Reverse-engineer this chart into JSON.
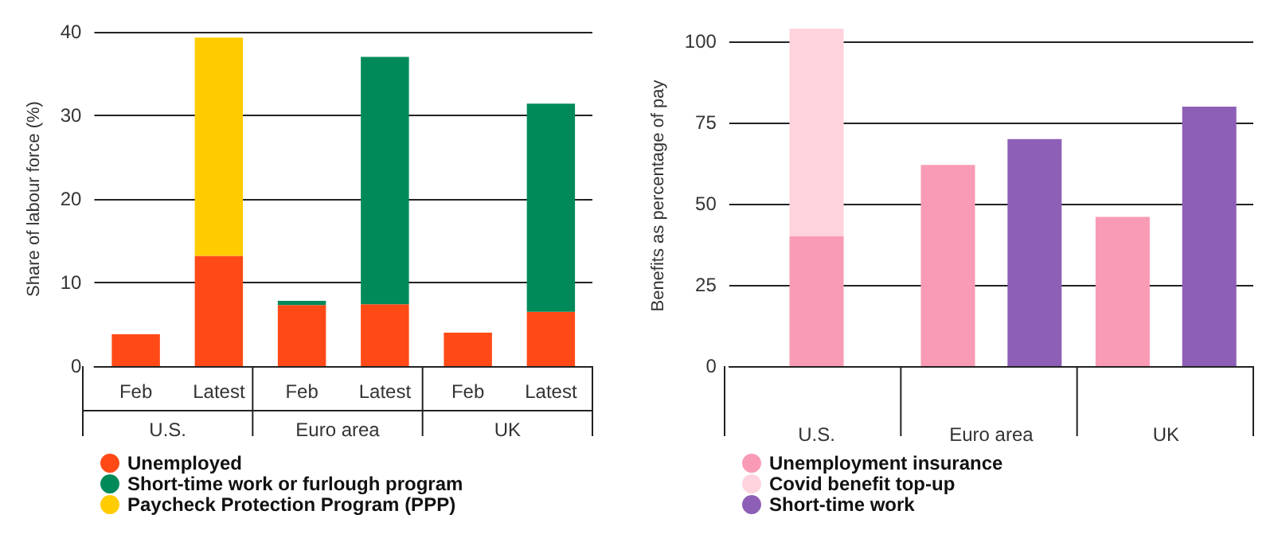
{
  "chart_data": [
    {
      "type": "bar",
      "ylabel": "Share of labour force (%)",
      "categories": [
        "Feb",
        "Latest",
        "Feb",
        "Latest",
        "Feb",
        "Latest"
      ],
      "annotations": [
        "U.S.",
        "Euro area",
        "UK"
      ],
      "stacked": true,
      "ylim": [
        0,
        40
      ],
      "yticks": [
        0,
        10,
        20,
        30,
        40
      ],
      "grid": "y",
      "legend": "bottom",
      "series": [
        {
          "name": "Unemployed",
          "color": "#ff4a17",
          "values": [
            3.8,
            13.2,
            7.3,
            7.4,
            4.0,
            6.5
          ]
        },
        {
          "name": "Short-time work or furlough program",
          "color": "#008a5a",
          "values": [
            null,
            null,
            0.5,
            29.6,
            null,
            24.9
          ]
        },
        {
          "name": "Paycheck Protection Program (PPP)",
          "color": "#ffcc00",
          "values": [
            null,
            26.1,
            null,
            null,
            null,
            null
          ]
        }
      ]
    },
    {
      "type": "bar",
      "ylabel": "Benefits as percentage of pay",
      "categories": [
        "U.S.",
        "Euro area",
        "UK"
      ],
      "ylim": [
        0,
        105
      ],
      "yticks": [
        0,
        25,
        50,
        75,
        100
      ],
      "grid": "y",
      "legend": "bottom",
      "series": [
        {
          "name": "Unemployment insurance",
          "color": "#f99bb5",
          "values": [
            40,
            62,
            46
          ]
        },
        {
          "name": "Covid benefit top-up",
          "color": "#ffd3de",
          "values": [
            64,
            null,
            null
          ],
          "base": [
            40,
            null,
            null
          ]
        },
        {
          "name": "Short-time work",
          "color": "#8e5fb7",
          "values": [
            null,
            70,
            80
          ]
        }
      ]
    }
  ]
}
